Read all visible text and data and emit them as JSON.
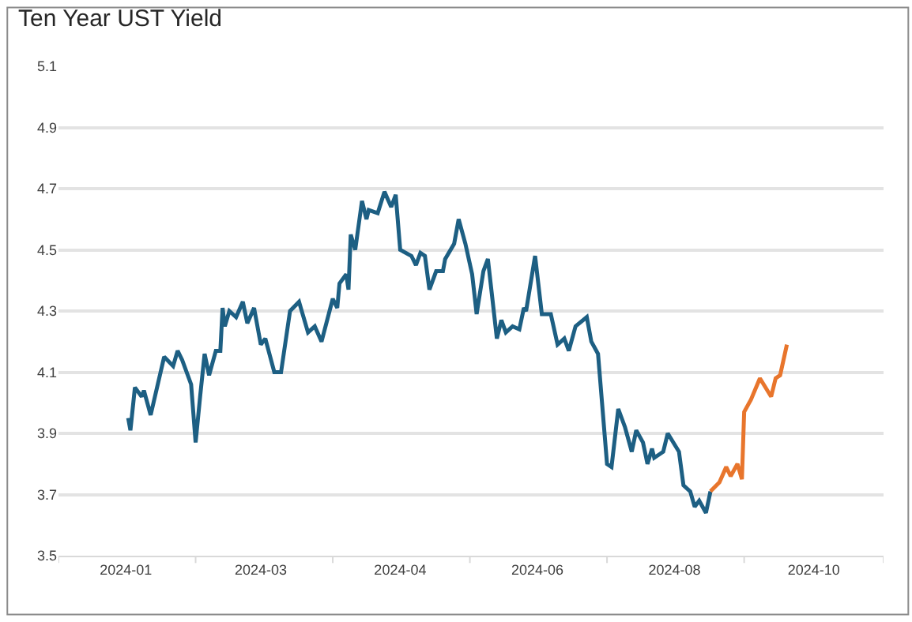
{
  "chart_data": {
    "type": "line",
    "title": "Ten Year UST Yield",
    "series": [
      {
        "color": "#1d5f83",
        "x": [
          "2024-01-02",
          "2024-01-03",
          "2024-01-05",
          "2024-01-08",
          "2024-01-09",
          "2024-01-12",
          "2024-01-18",
          "2024-01-22",
          "2024-01-24",
          "2024-01-26",
          "2024-01-30",
          "2024-02-01",
          "2024-02-03",
          "2024-02-05",
          "2024-02-07",
          "2024-02-10",
          "2024-02-12",
          "2024-02-13",
          "2024-02-14",
          "2024-02-16",
          "2024-02-19",
          "2024-02-22",
          "2024-02-24",
          "2024-02-27",
          "2024-03-01",
          "2024-03-03",
          "2024-03-07",
          "2024-03-10",
          "2024-03-14",
          "2024-03-18",
          "2024-03-22",
          "2024-03-25",
          "2024-03-28",
          "2024-04-02",
          "2024-04-04",
          "2024-04-05",
          "2024-04-08",
          "2024-04-09",
          "2024-04-10",
          "2024-04-12",
          "2024-04-15",
          "2024-04-17",
          "2024-04-18",
          "2024-04-22",
          "2024-04-25",
          "2024-04-28",
          "2024-04-30",
          "2024-05-02",
          "2024-05-07",
          "2024-05-09",
          "2024-05-11",
          "2024-05-13",
          "2024-05-15",
          "2024-05-18",
          "2024-05-21",
          "2024-05-22",
          "2024-05-26",
          "2024-05-28",
          "2024-05-31",
          "2024-06-03",
          "2024-06-05",
          "2024-06-08",
          "2024-06-10",
          "2024-06-14",
          "2024-06-16",
          "2024-06-18",
          "2024-06-21",
          "2024-06-24",
          "2024-06-26",
          "2024-06-27",
          "2024-07-01",
          "2024-07-04",
          "2024-07-08",
          "2024-07-11",
          "2024-07-14",
          "2024-07-16",
          "2024-07-19",
          "2024-07-24",
          "2024-07-26",
          "2024-07-29",
          "2024-08-02",
          "2024-08-04",
          "2024-08-07",
          "2024-08-10",
          "2024-08-13",
          "2024-08-15",
          "2024-08-18",
          "2024-08-20",
          "2024-08-22",
          "2024-08-23",
          "2024-08-27",
          "2024-08-29",
          "2024-09-03",
          "2024-09-05",
          "2024-09-08",
          "2024-09-10",
          "2024-09-12",
          "2024-09-15",
          "2024-09-17"
        ],
        "values": [
          3.95,
          3.91,
          4.05,
          4.02,
          4.04,
          3.96,
          4.15,
          4.12,
          4.17,
          4.14,
          4.06,
          3.87,
          4.02,
          4.16,
          4.09,
          4.17,
          4.17,
          4.31,
          4.25,
          4.3,
          4.28,
          4.33,
          4.26,
          4.31,
          4.19,
          4.21,
          4.1,
          4.1,
          4.3,
          4.33,
          4.23,
          4.25,
          4.2,
          4.34,
          4.31,
          4.39,
          4.42,
          4.37,
          4.55,
          4.5,
          4.66,
          4.6,
          4.63,
          4.62,
          4.69,
          4.64,
          4.68,
          4.5,
          4.48,
          4.45,
          4.49,
          4.48,
          4.37,
          4.43,
          4.43,
          4.47,
          4.52,
          4.6,
          4.52,
          4.42,
          4.29,
          4.43,
          4.47,
          4.21,
          4.27,
          4.23,
          4.25,
          4.24,
          4.31,
          4.3,
          4.48,
          4.29,
          4.29,
          4.19,
          4.21,
          4.17,
          4.25,
          4.28,
          4.2,
          4.16,
          3.8,
          3.79,
          3.98,
          3.92,
          3.84,
          3.91,
          3.87,
          3.8,
          3.85,
          3.82,
          3.84,
          3.9,
          3.84,
          3.73,
          3.71,
          3.66,
          3.68,
          3.64,
          3.71
        ]
      },
      {
        "color": "#e8752c",
        "x": [
          "2024-09-17",
          "2024-09-21",
          "2024-09-24",
          "2024-09-26",
          "2024-09-29",
          "2024-10-01",
          "2024-10-02",
          "2024-10-05",
          "2024-10-09",
          "2024-10-14",
          "2024-10-16",
          "2024-10-18",
          "2024-10-21"
        ],
        "values": [
          3.71,
          3.74,
          3.79,
          3.76,
          3.8,
          3.75,
          3.97,
          4.01,
          4.08,
          4.02,
          4.08,
          4.09,
          4.19
        ]
      }
    ],
    "xlim": [
      "2023-12-02",
      "2024-12-03"
    ],
    "xticks": [
      {
        "value": "2023-12-02",
        "label": null
      },
      {
        "value": "2024-01-01",
        "label": "2024-01"
      },
      {
        "value": "2024-02-01",
        "label": null
      },
      {
        "value": "2024-03-01",
        "label": "2024-03"
      },
      {
        "value": "2024-04-02",
        "label": null
      },
      {
        "value": "2024-05-02",
        "label": "2024-04"
      },
      {
        "value": "2024-06-02",
        "label": null
      },
      {
        "value": "2024-07-02",
        "label": "2024-06"
      },
      {
        "value": "2024-08-02",
        "label": null
      },
      {
        "value": "2024-09-01",
        "label": "2024-08"
      },
      {
        "value": "2024-10-02",
        "label": null
      },
      {
        "value": "2024-11-02",
        "label": "2024-10"
      },
      {
        "value": "2024-12-03",
        "label": null
      }
    ],
    "ylim": [
      3.5,
      5.1
    ],
    "yticks": [
      3.5,
      3.7,
      3.9,
      4.1,
      4.3,
      4.5,
      4.7,
      4.9,
      5.1
    ],
    "grid": "y",
    "marker": "none",
    "line_style": "solid"
  }
}
